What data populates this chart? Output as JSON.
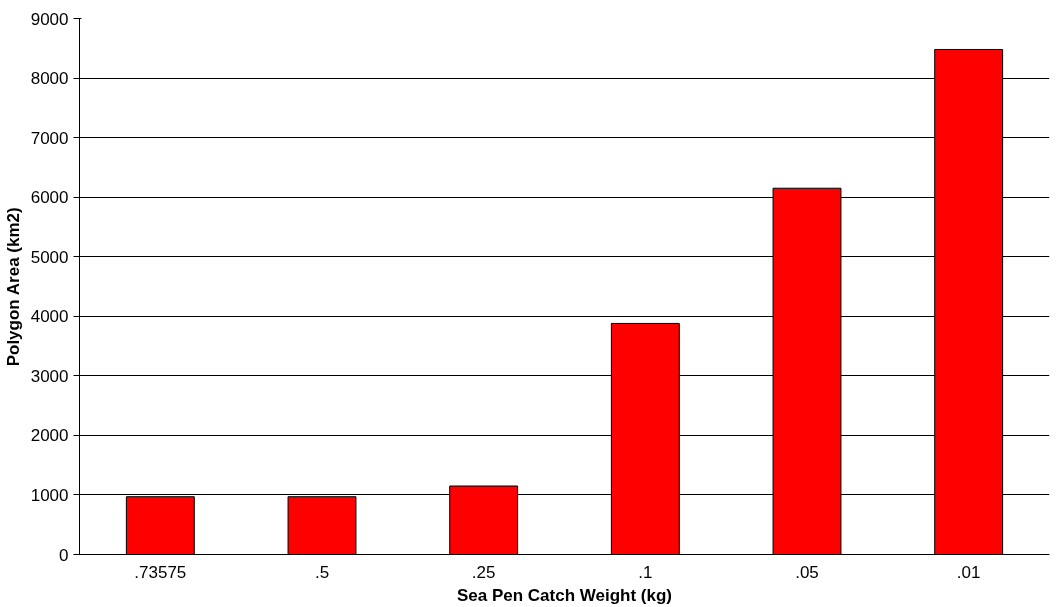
{
  "chart_data": {
    "type": "bar",
    "xlabel": "Sea Pen Catch Weight (kg)",
    "ylabel": "Polygon Area (km2)",
    "categories": [
      ".73575",
      ".5",
      ".25",
      ".1",
      ".05",
      ".01"
    ],
    "values": [
      970,
      970,
      1150,
      3880,
      6150,
      8480
    ],
    "color": "#ff0000",
    "ylim": [
      0,
      9000
    ],
    "yticks": [
      0,
      1000,
      2000,
      3000,
      4000,
      5000,
      6000,
      7000,
      8000,
      9000
    ],
    "grid": "y"
  }
}
